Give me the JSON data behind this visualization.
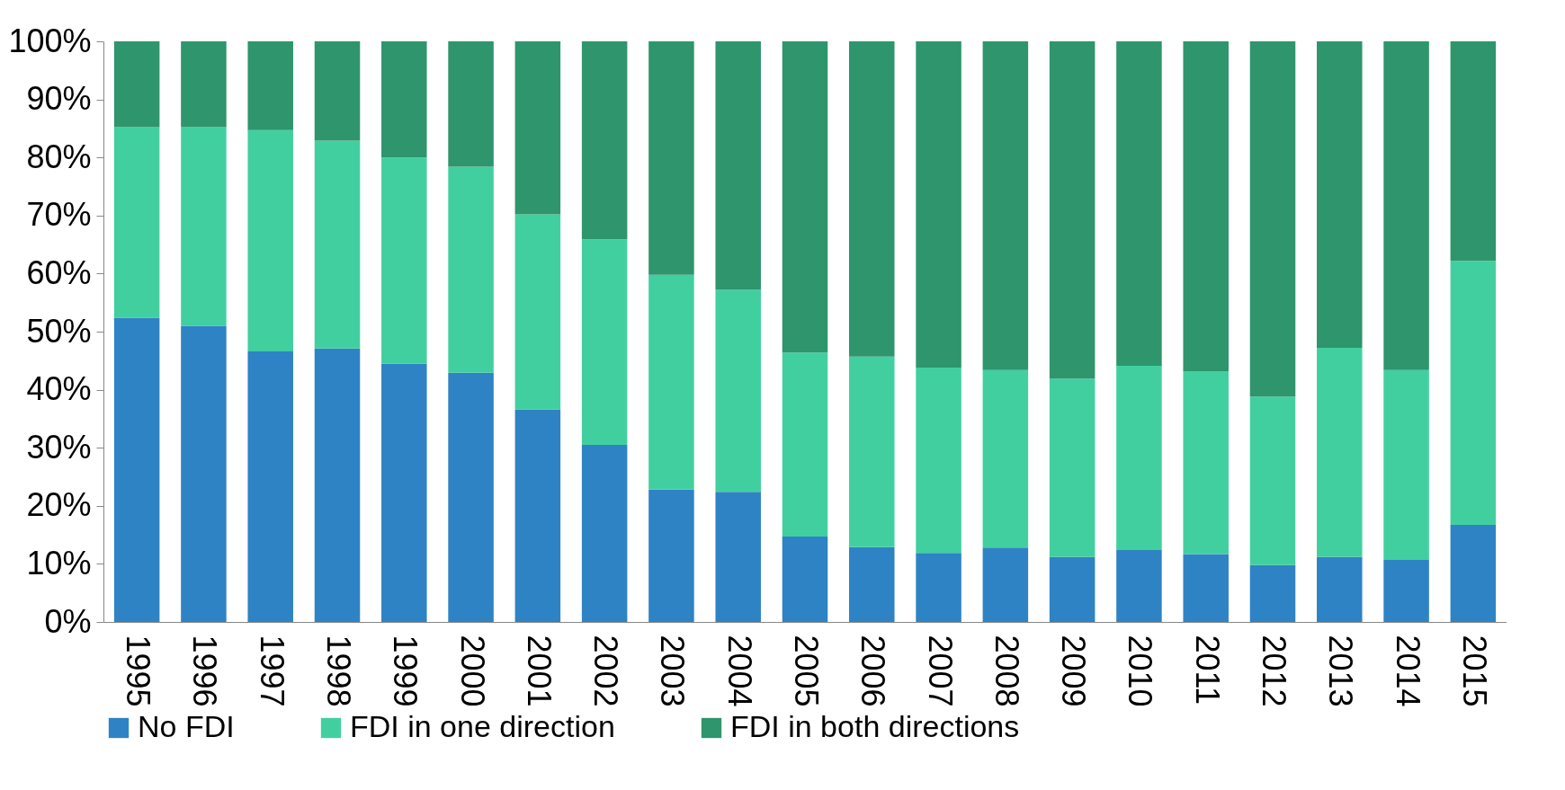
{
  "chart_data": {
    "type": "bar",
    "stacked": true,
    "categories": [
      "1995",
      "1996",
      "1997",
      "1998",
      "1999",
      "2000",
      "2001",
      "2002",
      "2003",
      "2004",
      "2005",
      "2006",
      "2007",
      "2008",
      "2009",
      "2010",
      "2011",
      "2012",
      "2013",
      "2014",
      "2015"
    ],
    "series": [
      {
        "name": "No FDI",
        "color": "#2e83c4",
        "values": [
          52.4,
          51.0,
          46.6,
          47.1,
          44.5,
          42.9,
          36.6,
          30.5,
          22.8,
          22.4,
          14.7,
          12.9,
          11.9,
          12.8,
          11.2,
          12.4,
          11.7,
          9.8,
          11.2,
          10.7,
          16.7
        ]
      },
      {
        "name": "FDI in one direction",
        "color": "#42cfa0",
        "values": [
          32.8,
          34.2,
          38.1,
          35.8,
          35.5,
          35.5,
          33.6,
          35.4,
          37.0,
          34.8,
          31.7,
          32.8,
          31.9,
          30.6,
          30.7,
          31.7,
          31.4,
          29.0,
          36.0,
          32.7,
          45.5
        ]
      },
      {
        "name": "FDI in both directions",
        "color": "#2e956d",
        "values": [
          14.8,
          14.8,
          15.3,
          17.1,
          20.0,
          21.6,
          29.8,
          34.1,
          40.2,
          42.8,
          53.6,
          54.3,
          56.2,
          56.6,
          58.1,
          55.9,
          56.9,
          61.2,
          52.8,
          56.6,
          37.8
        ]
      }
    ],
    "ylim": [
      0,
      100
    ],
    "yticks": [
      {
        "value": 0,
        "label": "0%"
      },
      {
        "value": 10,
        "label": "10%"
      },
      {
        "value": 20,
        "label": "20%"
      },
      {
        "value": 30,
        "label": "30%"
      },
      {
        "value": 40,
        "label": "40%"
      },
      {
        "value": 50,
        "label": "50%"
      },
      {
        "value": 60,
        "label": "60%"
      },
      {
        "value": 70,
        "label": "70%"
      },
      {
        "value": 80,
        "label": "80%"
      },
      {
        "value": 90,
        "label": "90%"
      },
      {
        "value": 100,
        "label": "100%"
      }
    ],
    "grid": false,
    "legend": "bottom"
  }
}
